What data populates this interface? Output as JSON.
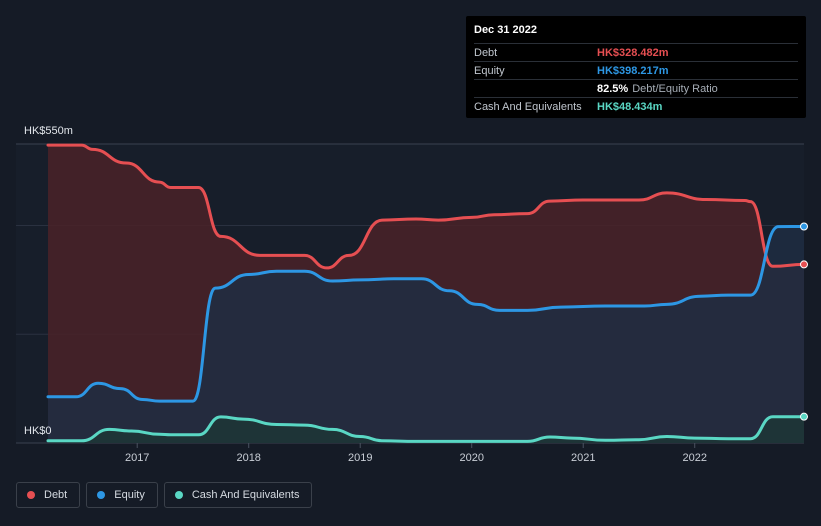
{
  "chart_data": {
    "type": "area",
    "currency_unit": "HK$m",
    "y_axis": {
      "min": 0,
      "max": 550,
      "top_label": "HK$550m",
      "bottom_label": "HK$0"
    },
    "x_range": [
      2016.2,
      2022.98
    ],
    "x_ticks": [
      {
        "value": 2017.0,
        "label": "2017"
      },
      {
        "value": 2018.0,
        "label": "2018"
      },
      {
        "value": 2019.0,
        "label": "2019"
      },
      {
        "value": 2020.0,
        "label": "2020"
      },
      {
        "value": 2021.0,
        "label": "2021"
      },
      {
        "value": 2022.0,
        "label": "2022"
      }
    ],
    "grid": true,
    "series": [
      {
        "name": "Debt",
        "color": "#e64f52",
        "fill": "#4a2228",
        "points": [
          [
            2016.2,
            548
          ],
          [
            2016.5,
            548
          ],
          [
            2016.6,
            540
          ],
          [
            2016.9,
            515
          ],
          [
            2017.2,
            480
          ],
          [
            2017.3,
            470
          ],
          [
            2017.55,
            470
          ],
          [
            2017.75,
            380
          ],
          [
            2018.1,
            345
          ],
          [
            2018.25,
            345
          ],
          [
            2018.5,
            345
          ],
          [
            2018.7,
            322
          ],
          [
            2018.9,
            345
          ],
          [
            2019.2,
            410
          ],
          [
            2019.5,
            412
          ],
          [
            2019.7,
            410
          ],
          [
            2020.0,
            415
          ],
          [
            2020.2,
            420
          ],
          [
            2020.5,
            422
          ],
          [
            2020.7,
            445
          ],
          [
            2021.0,
            447
          ],
          [
            2021.5,
            447
          ],
          [
            2021.75,
            460
          ],
          [
            2022.1,
            448
          ],
          [
            2022.45,
            446
          ],
          [
            2022.5,
            444
          ],
          [
            2022.7,
            325
          ],
          [
            2022.98,
            328.482
          ]
        ]
      },
      {
        "name": "Equity",
        "color": "#2d97e4",
        "fill": "#1f2d42",
        "points": [
          [
            2016.2,
            85
          ],
          [
            2016.45,
            85
          ],
          [
            2016.65,
            110
          ],
          [
            2016.85,
            100
          ],
          [
            2017.05,
            80
          ],
          [
            2017.2,
            77
          ],
          [
            2017.5,
            77
          ],
          [
            2017.7,
            285
          ],
          [
            2018.0,
            310
          ],
          [
            2018.25,
            316
          ],
          [
            2018.5,
            316
          ],
          [
            2018.75,
            298
          ],
          [
            2019.0,
            300
          ],
          [
            2019.3,
            302
          ],
          [
            2019.55,
            302
          ],
          [
            2019.8,
            280
          ],
          [
            2020.05,
            255
          ],
          [
            2020.25,
            244
          ],
          [
            2020.5,
            244
          ],
          [
            2020.8,
            250
          ],
          [
            2021.2,
            252
          ],
          [
            2021.55,
            252
          ],
          [
            2021.75,
            255
          ],
          [
            2022.05,
            270
          ],
          [
            2022.3,
            272
          ],
          [
            2022.5,
            272
          ],
          [
            2022.75,
            398
          ],
          [
            2022.98,
            398.217
          ]
        ]
      },
      {
        "name": "Cash And Equivalents",
        "color": "#5ad7c4",
        "fill": "#1d3636",
        "points": [
          [
            2016.2,
            4
          ],
          [
            2016.5,
            4
          ],
          [
            2016.75,
            25
          ],
          [
            2016.95,
            22
          ],
          [
            2017.2,
            16
          ],
          [
            2017.3,
            15
          ],
          [
            2017.55,
            15
          ],
          [
            2017.75,
            48
          ],
          [
            2017.95,
            44
          ],
          [
            2018.25,
            34
          ],
          [
            2018.5,
            33
          ],
          [
            2018.75,
            25
          ],
          [
            2019.0,
            12
          ],
          [
            2019.2,
            4
          ],
          [
            2019.5,
            3
          ],
          [
            2020.0,
            3
          ],
          [
            2020.5,
            3
          ],
          [
            2020.7,
            11
          ],
          [
            2020.9,
            9
          ],
          [
            2021.2,
            5
          ],
          [
            2021.5,
            6
          ],
          [
            2021.75,
            12
          ],
          [
            2022.0,
            9
          ],
          [
            2022.3,
            8
          ],
          [
            2022.5,
            8
          ],
          [
            2022.7,
            48.434
          ],
          [
            2022.98,
            48.434
          ]
        ]
      }
    ]
  },
  "tooltip": {
    "date": "Dec 31 2022",
    "rows": [
      {
        "label": "Debt",
        "value": "HK$328.482m",
        "color": "#e64f52"
      },
      {
        "label": "Equity",
        "value": "HK$398.217m",
        "color": "#2d97e4"
      }
    ],
    "ratio_pct": "82.5%",
    "ratio_label": "Debt/Equity Ratio",
    "cash_label": "Cash And Equivalents",
    "cash_value": "HK$48.434m",
    "cash_color": "#5ad7c4"
  },
  "legend": [
    {
      "label": "Debt",
      "color": "#e64f52"
    },
    {
      "label": "Equity",
      "color": "#2d97e4"
    },
    {
      "label": "Cash And Equivalents",
      "color": "#5ad7c4"
    }
  ]
}
